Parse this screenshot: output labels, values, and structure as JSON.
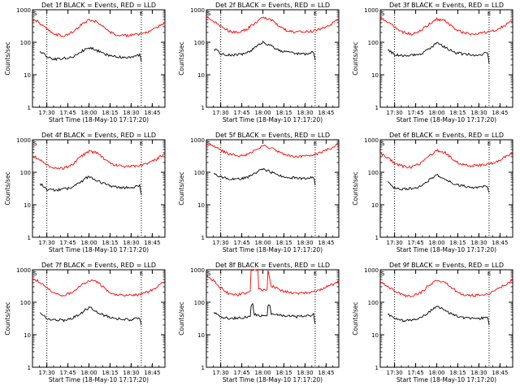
{
  "chart_data": [
    {
      "type": "line",
      "title": "Det 1f BLACK = Events, RED = LLD",
      "xlabel": "Start Time (18-May-10 17:17:20)",
      "ylabel": "Counts/sec",
      "yscale": "log",
      "ylim": [
        1,
        1000
      ],
      "xlim": [
        17.33,
        18.9
      ],
      "x_ticks": [
        "17:30",
        "17:45",
        "18:00",
        "18:15",
        "18:30",
        "18:45"
      ],
      "y_ticks": [
        "1",
        "10",
        "100",
        "1000"
      ],
      "markers": {
        "S": 17.33,
        "E": 18.62,
        "dotted": [
          17.5,
          18.62
        ]
      },
      "series": [
        {
          "name": "RED = LLD",
          "color": "#ff0000",
          "x": [
            17.33,
            17.4,
            17.5,
            17.6,
            17.7,
            17.8,
            17.9,
            18.0,
            18.1,
            18.2,
            18.3,
            18.4,
            18.5,
            18.6,
            18.7,
            18.8,
            18.9
          ],
          "y": [
            520,
            420,
            260,
            175,
            160,
            200,
            330,
            490,
            420,
            250,
            175,
            160,
            165,
            175,
            210,
            280,
            420
          ]
        },
        {
          "name": "BLACK = Events",
          "color": "#000000",
          "x": [
            17.42,
            17.5,
            17.6,
            17.7,
            17.8,
            17.9,
            18.0,
            18.1,
            18.2,
            18.3,
            18.4,
            18.5,
            18.6,
            18.62
          ],
          "y": [
            55,
            35,
            30,
            32,
            35,
            50,
            70,
            55,
            42,
            36,
            34,
            33,
            40,
            25
          ]
        }
      ]
    },
    {
      "type": "line",
      "title": "Det 2f BLACK = Events, RED = LLD",
      "xlabel": "Start Time (18-May-10 17:17:20)",
      "ylabel": "Counts/sec",
      "yscale": "log",
      "ylim": [
        1,
        1000
      ],
      "xlim": [
        17.33,
        18.9
      ],
      "x_ticks": [
        "17:30",
        "17:45",
        "18:00",
        "18:15",
        "18:30",
        "18:45"
      ],
      "y_ticks": [
        "1",
        "10",
        "100",
        "1000"
      ],
      "markers": {
        "S": 17.33,
        "E": 18.62,
        "dotted": [
          17.5,
          18.62
        ]
      },
      "series": [
        {
          "name": "RED = LLD",
          "color": "#ff0000",
          "x": [
            17.33,
            17.4,
            17.5,
            17.6,
            17.7,
            17.8,
            17.9,
            18.0,
            18.1,
            18.2,
            18.3,
            18.4,
            18.5,
            18.6,
            18.7,
            18.8,
            18.9
          ],
          "y": [
            600,
            480,
            320,
            220,
            200,
            240,
            380,
            560,
            480,
            300,
            220,
            200,
            210,
            220,
            270,
            350,
            500
          ]
        },
        {
          "name": "BLACK = Events",
          "color": "#000000",
          "x": [
            17.42,
            17.5,
            17.6,
            17.7,
            17.8,
            17.9,
            18.0,
            18.1,
            18.2,
            18.3,
            18.4,
            18.5,
            18.6,
            18.62
          ],
          "y": [
            65,
            45,
            40,
            42,
            45,
            65,
            100,
            75,
            55,
            48,
            45,
            42,
            50,
            28
          ]
        }
      ]
    },
    {
      "type": "line",
      "title": "Det 3f BLACK = Events, RED = LLD",
      "xlabel": "Start Time (18-May-10 17:17:20)",
      "ylabel": "Counts/sec",
      "yscale": "log",
      "ylim": [
        1,
        1000
      ],
      "xlim": [
        17.33,
        18.9
      ],
      "x_ticks": [
        "17:30",
        "17:45",
        "18:00",
        "18:15",
        "18:30",
        "18:45"
      ],
      "y_ticks": [
        "1",
        "10",
        "100",
        "1000"
      ],
      "markers": {
        "S": 17.33,
        "E": 18.62,
        "dotted": [
          17.5,
          18.62
        ]
      },
      "series": [
        {
          "name": "RED = LLD",
          "color": "#ff0000",
          "x": [
            17.33,
            17.4,
            17.5,
            17.6,
            17.7,
            17.8,
            17.9,
            18.0,
            18.1,
            18.2,
            18.3,
            18.4,
            18.5,
            18.6,
            18.7,
            18.8,
            18.9
          ],
          "y": [
            560,
            450,
            290,
            200,
            180,
            220,
            350,
            520,
            450,
            280,
            200,
            180,
            190,
            200,
            240,
            320,
            460
          ]
        },
        {
          "name": "BLACK = Events",
          "color": "#000000",
          "x": [
            17.42,
            17.5,
            17.6,
            17.7,
            17.8,
            17.9,
            18.0,
            18.1,
            18.2,
            18.3,
            18.4,
            18.5,
            18.6,
            18.62
          ],
          "y": [
            60,
            42,
            38,
            40,
            42,
            60,
            95,
            70,
            50,
            44,
            42,
            40,
            48,
            22
          ]
        }
      ]
    },
    {
      "type": "line",
      "title": "Det 4f BLACK = Events, RED = LLD",
      "xlabel": "Start Time (18-May-10 17:17:20)",
      "ylabel": "Counts/sec",
      "yscale": "log",
      "ylim": [
        1,
        1000
      ],
      "xlim": [
        17.33,
        18.9
      ],
      "x_ticks": [
        "17:30",
        "17:45",
        "18:00",
        "18:15",
        "18:30",
        "18:45"
      ],
      "y_ticks": [
        "1",
        "10",
        "100",
        "1000"
      ],
      "markers": {
        "S": 17.33,
        "E": 18.62,
        "dotted": [
          17.5,
          18.62
        ]
      },
      "series": [
        {
          "name": "RED = LLD",
          "color": "#ff0000",
          "x": [
            17.33,
            17.4,
            17.5,
            17.6,
            17.7,
            17.8,
            17.9,
            18.0,
            18.1,
            18.2,
            18.3,
            18.4,
            18.5,
            18.6,
            18.7,
            18.8,
            18.9
          ],
          "y": [
            330,
            260,
            170,
            135,
            130,
            170,
            300,
            450,
            380,
            230,
            165,
            150,
            155,
            160,
            190,
            250,
            380
          ]
        },
        {
          "name": "BLACK = Events",
          "color": "#000000",
          "x": [
            17.42,
            17.5,
            17.6,
            17.7,
            17.8,
            17.9,
            18.0,
            18.1,
            18.2,
            18.3,
            18.4,
            18.5,
            18.6,
            18.62
          ],
          "y": [
            45,
            30,
            28,
            30,
            34,
            50,
            75,
            55,
            42,
            36,
            34,
            33,
            38,
            20
          ]
        }
      ]
    },
    {
      "type": "line",
      "title": "Det 5f BLACK = Events, RED = LLD",
      "xlabel": "Start Time (18-May-10 17:17:20)",
      "ylabel": "Counts/sec",
      "yscale": "log",
      "ylim": [
        1,
        1000
      ],
      "xlim": [
        17.33,
        18.9
      ],
      "x_ticks": [
        "17:30",
        "17:45",
        "18:00",
        "18:15",
        "18:30",
        "18:45"
      ],
      "y_ticks": [
        "1",
        "10",
        "100",
        "1000"
      ],
      "markers": {
        "S": 17.33,
        "E": 18.62,
        "dotted": [
          17.5,
          18.62
        ]
      },
      "series": [
        {
          "name": "RED = LLD",
          "color": "#ff0000",
          "x": [
            17.33,
            17.4,
            17.5,
            17.6,
            17.7,
            17.8,
            17.9,
            18.0,
            18.1,
            18.2,
            18.3,
            18.4,
            18.5,
            18.6,
            18.7,
            18.8,
            18.9
          ],
          "y": [
            750,
            640,
            480,
            360,
            320,
            340,
            450,
            650,
            560,
            400,
            330,
            310,
            320,
            340,
            420,
            550,
            750
          ]
        },
        {
          "name": "BLACK = Events",
          "color": "#000000",
          "x": [
            17.42,
            17.5,
            17.6,
            17.7,
            17.8,
            17.9,
            18.0,
            18.1,
            18.2,
            18.3,
            18.4,
            18.5,
            18.6,
            18.62
          ],
          "y": [
            90,
            70,
            62,
            62,
            68,
            90,
            130,
            100,
            78,
            70,
            66,
            64,
            72,
            40
          ]
        }
      ]
    },
    {
      "type": "line",
      "title": "Det 6f BLACK = Events, RED = LLD",
      "xlabel": "Start Time (18-May-10 17:17:20)",
      "ylabel": "Counts/sec",
      "yscale": "log",
      "ylim": [
        1,
        1000
      ],
      "xlim": [
        17.33,
        18.9
      ],
      "x_ticks": [
        "17:30",
        "17:45",
        "18:00",
        "18:15",
        "18:30",
        "18:45"
      ],
      "y_ticks": [
        "1",
        "10",
        "100",
        "1000"
      ],
      "markers": {
        "S": 17.33,
        "E": 18.62,
        "dotted": [
          17.5,
          18.62
        ]
      },
      "series": [
        {
          "name": "RED = LLD",
          "color": "#ff0000",
          "x": [
            17.33,
            17.4,
            17.5,
            17.6,
            17.7,
            17.8,
            17.9,
            18.0,
            18.1,
            18.2,
            18.3,
            18.4,
            18.5,
            18.6,
            18.7,
            18.8,
            18.9
          ],
          "y": [
            390,
            300,
            190,
            150,
            145,
            180,
            300,
            460,
            400,
            240,
            170,
            160,
            165,
            175,
            210,
            280,
            400
          ]
        },
        {
          "name": "BLACK = Events",
          "color": "#000000",
          "x": [
            17.42,
            17.5,
            17.6,
            17.7,
            17.8,
            17.9,
            18.0,
            18.1,
            18.2,
            18.3,
            18.4,
            18.5,
            18.6,
            18.62
          ],
          "y": [
            50,
            33,
            30,
            32,
            36,
            55,
            85,
            60,
            44,
            38,
            35,
            34,
            38,
            24
          ]
        }
      ]
    },
    {
      "type": "line",
      "title": "Det 7f BLACK = Events, RED = LLD",
      "xlabel": "Start Time (18-May-10 17:17:20)",
      "ylabel": "Counts/sec",
      "yscale": "log",
      "ylim": [
        1,
        1000
      ],
      "xlim": [
        17.33,
        18.9
      ],
      "x_ticks": [
        "17:30",
        "17:45",
        "18:00",
        "18:15",
        "18:30",
        "18:45"
      ],
      "y_ticks": [
        "1",
        "10",
        "100",
        "1000"
      ],
      "markers": {
        "S": 17.33,
        "E": 18.62,
        "dotted": [
          17.5,
          18.62
        ]
      },
      "series": [
        {
          "name": "RED = LLD",
          "color": "#ff0000",
          "x": [
            17.33,
            17.4,
            17.5,
            17.6,
            17.7,
            17.8,
            17.9,
            18.0,
            18.1,
            18.2,
            18.3,
            18.4,
            18.5,
            18.6,
            18.7,
            18.8,
            18.9
          ],
          "y": [
            550,
            440,
            280,
            180,
            160,
            200,
            320,
            480,
            410,
            250,
            175,
            160,
            165,
            175,
            210,
            290,
            430
          ]
        },
        {
          "name": "BLACK = Events",
          "color": "#000000",
          "x": [
            17.42,
            17.5,
            17.6,
            17.7,
            17.8,
            17.9,
            18.0,
            18.1,
            18.2,
            18.3,
            18.4,
            18.5,
            18.6,
            18.62
          ],
          "y": [
            48,
            32,
            28,
            28,
            32,
            45,
            70,
            50,
            38,
            32,
            30,
            29,
            33,
            20
          ]
        }
      ]
    },
    {
      "type": "line",
      "title": "Det 8f BLACK = Events, RED = LLD",
      "xlabel": "Start Time (18-May-10 17:17:20)",
      "ylabel": "Counts/sec",
      "yscale": "log",
      "ylim": [
        1,
        1000
      ],
      "xlim": [
        17.33,
        18.9
      ],
      "x_ticks": [
        "17:30",
        "17:45",
        "18:00",
        "18:15",
        "18:30",
        "18:45"
      ],
      "y_ticks": [
        "1",
        "10",
        "100",
        "1000"
      ],
      "markers": {
        "S": 17.33,
        "E": 18.62,
        "dotted": [
          17.5,
          18.62
        ]
      },
      "series": [
        {
          "name": "RED = LLD",
          "color": "#ff0000",
          "x": [
            17.33,
            17.4,
            17.5,
            17.6,
            17.7,
            17.8,
            17.85,
            17.86,
            17.9,
            17.94,
            17.95,
            18.0,
            18.05,
            18.06,
            18.1,
            18.2,
            18.3,
            18.4,
            18.5,
            18.6,
            18.7,
            18.8,
            18.9
          ],
          "y": [
            700,
            500,
            280,
            180,
            170,
            190,
            220,
            1000,
            1000,
            1000,
            250,
            240,
            250,
            1000,
            320,
            240,
            200,
            190,
            195,
            210,
            260,
            330,
            420
          ]
        },
        {
          "name": "BLACK = Events",
          "color": "#000000",
          "x": [
            17.42,
            17.5,
            17.6,
            17.7,
            17.8,
            17.85,
            17.86,
            17.88,
            17.9,
            17.95,
            18.0,
            18.05,
            18.06,
            18.08,
            18.1,
            18.2,
            18.3,
            18.4,
            18.5,
            18.6,
            18.62
          ],
          "y": [
            48,
            34,
            32,
            33,
            35,
            38,
            80,
            85,
            42,
            40,
            38,
            40,
            80,
            85,
            44,
            40,
            38,
            36,
            37,
            42,
            22
          ]
        }
      ]
    },
    {
      "type": "line",
      "title": "Det 9f BLACK = Events, RED = LLD",
      "xlabel": "Start Time (18-May-10 17:17:20)",
      "ylabel": "Counts/sec",
      "yscale": "log",
      "ylim": [
        1,
        1000
      ],
      "xlim": [
        17.33,
        18.9
      ],
      "x_ticks": [
        "17:30",
        "17:45",
        "18:00",
        "18:15",
        "18:30",
        "18:45"
      ],
      "y_ticks": [
        "1",
        "10",
        "100",
        "1000"
      ],
      "markers": {
        "S": 17.33,
        "E": 18.62,
        "dotted": [
          17.5,
          18.62
        ]
      },
      "series": [
        {
          "name": "RED = LLD",
          "color": "#ff0000",
          "x": [
            17.33,
            17.4,
            17.5,
            17.6,
            17.7,
            17.8,
            17.9,
            18.0,
            18.1,
            18.2,
            18.3,
            18.4,
            18.5,
            18.6,
            18.7,
            18.8,
            18.9
          ],
          "y": [
            430,
            340,
            220,
            165,
            155,
            190,
            310,
            470,
            400,
            250,
            175,
            160,
            165,
            180,
            240,
            330,
            480
          ]
        },
        {
          "name": "BLACK = Events",
          "color": "#000000",
          "x": [
            17.42,
            17.5,
            17.6,
            17.7,
            17.8,
            17.9,
            18.0,
            18.1,
            18.2,
            18.3,
            18.4,
            18.5,
            18.6,
            18.62
          ],
          "y": [
            45,
            30,
            27,
            28,
            32,
            48,
            78,
            55,
            40,
            34,
            32,
            31,
            36,
            20
          ]
        }
      ]
    }
  ]
}
